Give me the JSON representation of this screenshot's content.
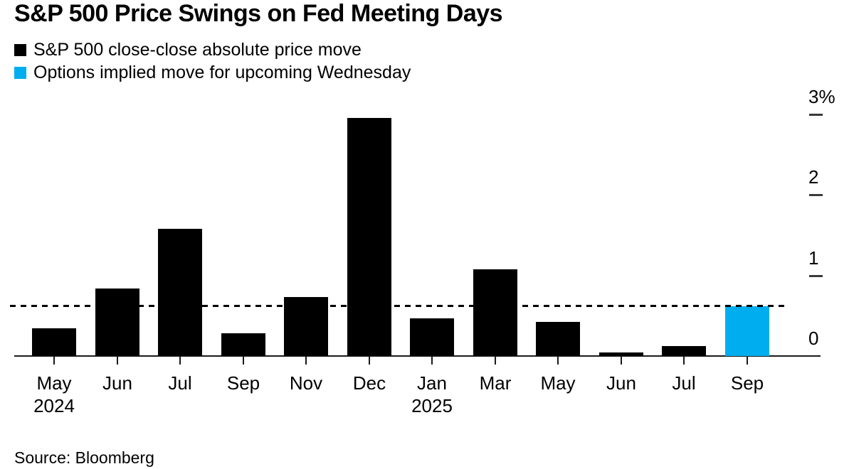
{
  "header": {
    "title": "S&P 500 Price Swings on Fed Meeting Days"
  },
  "legend": {
    "items": [
      {
        "label": "S&P 500 close-close absolute price move",
        "color": "#000000"
      },
      {
        "label": "Options implied move for upcoming Wednesday",
        "color": "#00aeef"
      }
    ]
  },
  "footer": {
    "source": "Source: Bloomberg"
  },
  "chart_data": {
    "type": "bar",
    "title": "S&P 500 Price Swings on Fed Meeting Days",
    "categories": [
      "May",
      "Jun",
      "Jul",
      "Sep",
      "Nov",
      "Dec",
      "Jan",
      "Mar",
      "May",
      "Jun",
      "Jul",
      "Sep"
    ],
    "year_labels": [
      {
        "index": 0,
        "label": "2024"
      },
      {
        "index": 6,
        "label": "2025"
      }
    ],
    "series": [
      {
        "name": "S&P 500 close-close absolute price move",
        "color": "#000000",
        "values": [
          0.34,
          0.84,
          1.58,
          0.28,
          0.73,
          2.96,
          0.47,
          1.08,
          0.42,
          0.04,
          0.12,
          null
        ]
      },
      {
        "name": "Options implied move for upcoming Wednesday",
        "color": "#00aeef",
        "values": [
          null,
          null,
          null,
          null,
          null,
          null,
          null,
          null,
          null,
          null,
          null,
          0.62
        ]
      }
    ],
    "reference_line": {
      "value": 0.63,
      "style": "dashed",
      "color": "#000000"
    },
    "ylabel": "",
    "xlabel": "",
    "ylim": [
      0,
      3
    ],
    "yticks": [
      {
        "value": 0,
        "label": "0"
      },
      {
        "value": 1,
        "label": "1"
      },
      {
        "value": 2,
        "label": "2"
      },
      {
        "value": 3,
        "label": "3%"
      }
    ],
    "y_axis_side": "right",
    "legend_position": "top-left",
    "grid": false
  }
}
